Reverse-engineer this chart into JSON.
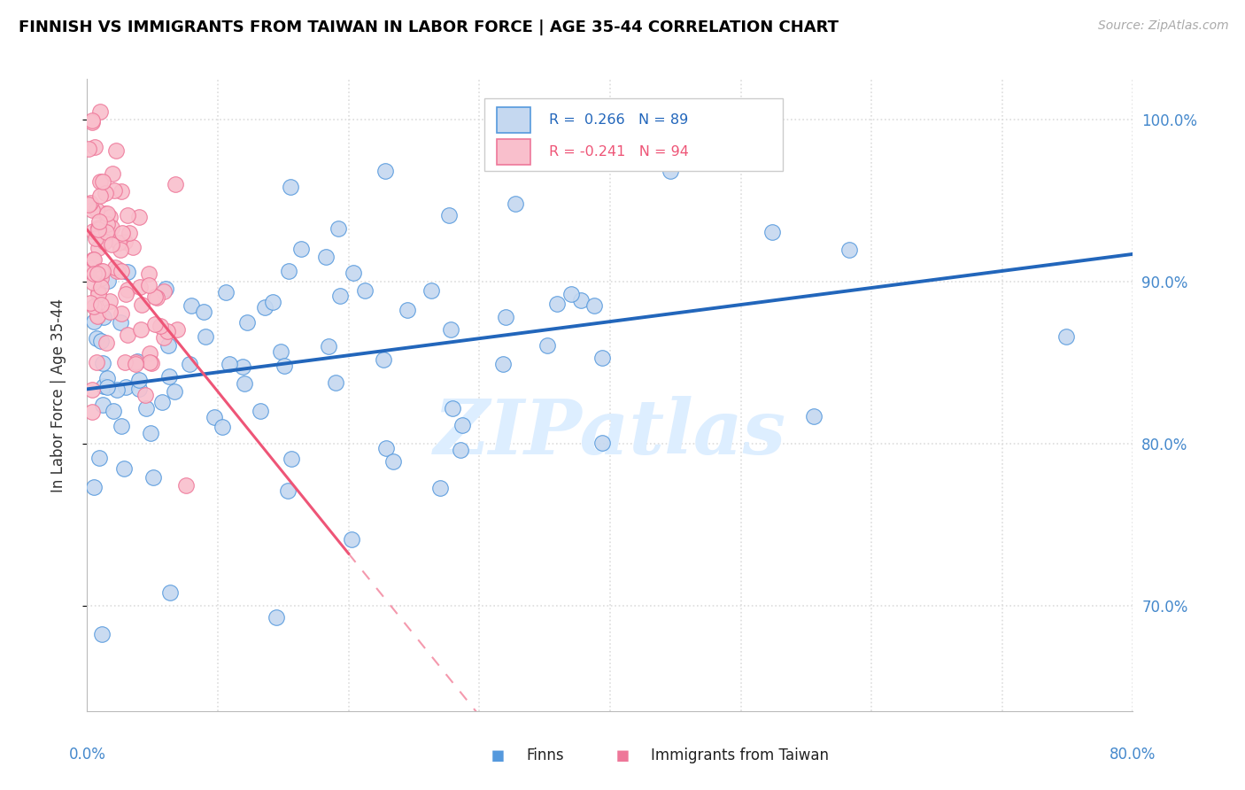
{
  "title": "FINNISH VS IMMIGRANTS FROM TAIWAN IN LABOR FORCE | AGE 35-44 CORRELATION CHART",
  "source": "Source: ZipAtlas.com",
  "ylabel": "In Labor Force | Age 35-44",
  "blue_color": "#c5d8f0",
  "pink_color": "#f9bfcc",
  "blue_edge_color": "#5599dd",
  "pink_edge_color": "#ee7799",
  "blue_line_color": "#2266bb",
  "pink_line_color": "#ee5577",
  "axis_label_color": "#4488cc",
  "xmin": 0.0,
  "xmax": 0.8,
  "ymin": 0.635,
  "ymax": 1.025,
  "blue_R": 0.266,
  "blue_N": 89,
  "pink_R": -0.241,
  "pink_N": 94,
  "y_ticks": [
    0.7,
    0.8,
    0.9,
    1.0
  ],
  "y_tick_labels": [
    "70.0%",
    "80.0%",
    "90.0%",
    "100.0%"
  ],
  "watermark_color": "#ddeeff",
  "bottom_legend_blue": "Finns",
  "bottom_legend_pink": "Immigrants from Taiwan",
  "legend_box_color": "#cccccc",
  "grid_color": "#dddddd",
  "spine_color": "#bbbbbb"
}
